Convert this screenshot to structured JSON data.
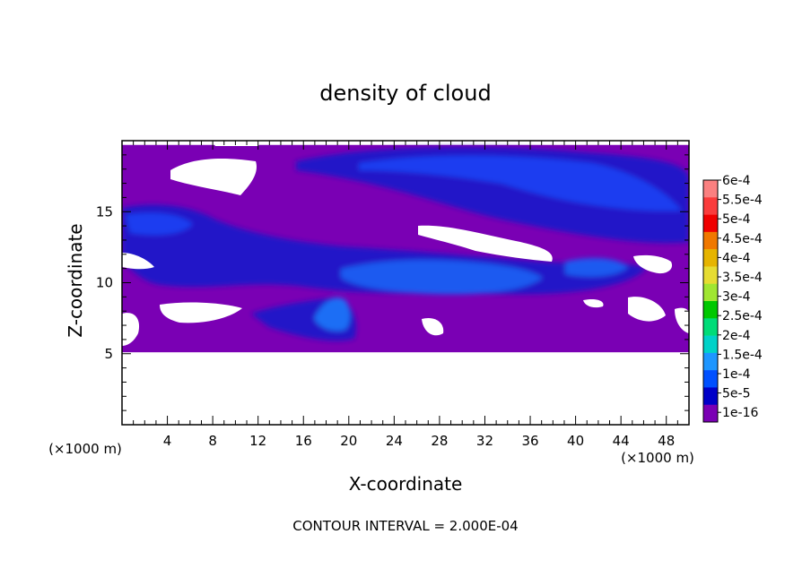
{
  "chart_data": {
    "type": "heatmap",
    "title": "density of cloud",
    "xlabel": "X-coordinate",
    "ylabel": "Z-coordinate",
    "x_unit": "(×1000 m)",
    "z_unit": "(×1000 m)",
    "xlim": [
      0,
      50
    ],
    "ylim": [
      0,
      20
    ],
    "x_ticks": [
      "4",
      "8",
      "12",
      "16",
      "20",
      "24",
      "28",
      "32",
      "36",
      "40",
      "44",
      "48"
    ],
    "y_ticks": [
      "5",
      "10",
      "15"
    ],
    "footer": "CONTOUR INTERVAL = 2.000E-04",
    "colorbar": {
      "labels": [
        "6e-4",
        "5.5e-4",
        "5e-4",
        "4.5e-4",
        "4e-4",
        "3.5e-4",
        "3e-4",
        "2.5e-4",
        "2e-4",
        "1.5e-4",
        "1e-4",
        "5e-5",
        "1e-16"
      ],
      "colors": [
        "#fa8080",
        "#fa3c3c",
        "#f00000",
        "#f07800",
        "#e6b400",
        "#e6dc32",
        "#a0e632",
        "#00c800",
        "#00dc78",
        "#00d2c8",
        "#1e96ff",
        "#0050ff",
        "#0000c8",
        "#7a00b4"
      ]
    },
    "field": {
      "background": "#7a00b4",
      "no_data_color": "#ffffff",
      "cloud_base_z": 5.1,
      "cloud_top_z": 19.7
    }
  }
}
